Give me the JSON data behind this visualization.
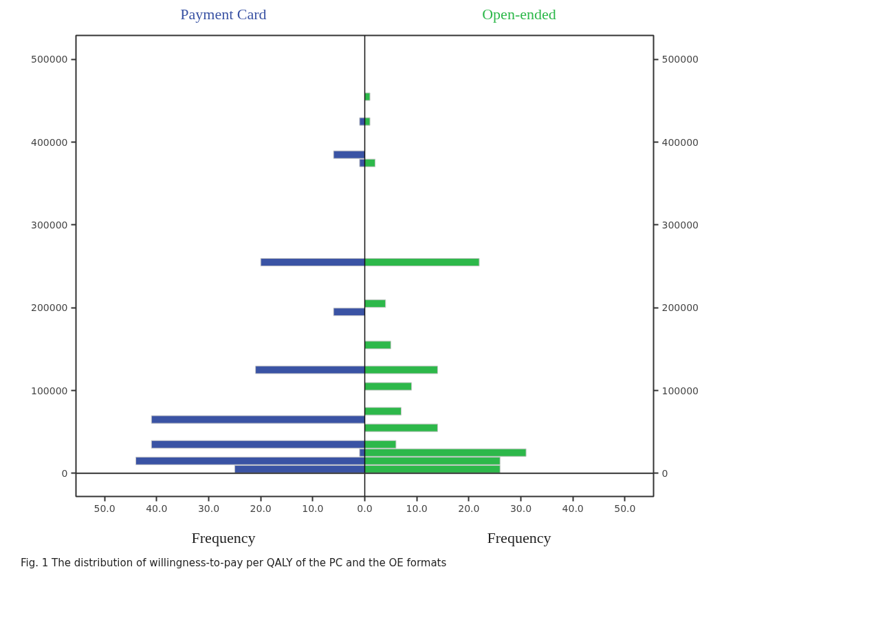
{
  "chart_data": {
    "type": "histogram",
    "orientation": "horizontal",
    "xlabel": "Frequency",
    "bins": [
      0,
      10000,
      20000,
      30000,
      40000,
      50000,
      60000,
      70000,
      80000,
      90000,
      100000,
      110000,
      120000,
      130000,
      140000,
      150000,
      160000,
      170000,
      180000,
      190000,
      200000,
      210000,
      220000,
      230000,
      240000,
      250000,
      260000,
      270000,
      280000,
      290000,
      300000,
      310000,
      320000,
      330000,
      340000,
      350000,
      360000,
      370000,
      380000,
      390000,
      400000,
      410000,
      420000,
      430000,
      440000,
      450000,
      460000
    ],
    "series": [
      {
        "name": "Payment Card",
        "color": "#3a53a4",
        "values": [
          -25,
          -44,
          -1,
          -41,
          0,
          0,
          -41,
          0,
          0,
          0,
          0,
          0,
          -21,
          0,
          0,
          0,
          0,
          0,
          0,
          -6,
          0,
          0,
          0,
          0,
          0,
          -20,
          0,
          0,
          0,
          0,
          0,
          0,
          0,
          0,
          0,
          0,
          0,
          -1,
          -6,
          0,
          0,
          0,
          -1,
          0,
          0,
          0
        ]
      },
      {
        "name": "Open-ended",
        "color": "#2db84a",
        "values": [
          26,
          26,
          31,
          6,
          0,
          14,
          0,
          7,
          0,
          0,
          9,
          0,
          14,
          0,
          0,
          5,
          0,
          0,
          0,
          0,
          4,
          0,
          0,
          0,
          0,
          22,
          0,
          0,
          0,
          0,
          0,
          0,
          0,
          0,
          0,
          0,
          0,
          2,
          0,
          0,
          0,
          0,
          1,
          0,
          0,
          1
        ]
      }
    ],
    "xlim": [
      -55.5,
      55.5
    ],
    "xticks": [
      {
        "value": -50,
        "label": "50.0"
      },
      {
        "value": -40,
        "label": "40.0"
      },
      {
        "value": -30,
        "label": "30.0"
      },
      {
        "value": -20,
        "label": "20.0"
      },
      {
        "value": -10,
        "label": "10.0"
      },
      {
        "value": 0,
        "label": "0.0"
      },
      {
        "value": 10,
        "label": "10.0"
      },
      {
        "value": 20,
        "label": "20.0"
      },
      {
        "value": 30,
        "label": "30.0"
      },
      {
        "value": 40,
        "label": "40.0"
      },
      {
        "value": 50,
        "label": "50.0"
      }
    ],
    "ylim": [
      -28000,
      529000
    ],
    "yticks": [
      0,
      100000,
      200000,
      300000,
      400000,
      500000
    ],
    "y2lim": [
      -28000,
      529000
    ],
    "y2ticks": [
      0,
      100000,
      200000,
      300000,
      400000,
      500000
    ],
    "ref_lines": [
      {
        "axis": "y",
        "value": 0
      }
    ],
    "annotations": [
      "Fig. 1 The distribution of willingness-to-pay per QALY of the PC and the OE formats"
    ]
  }
}
